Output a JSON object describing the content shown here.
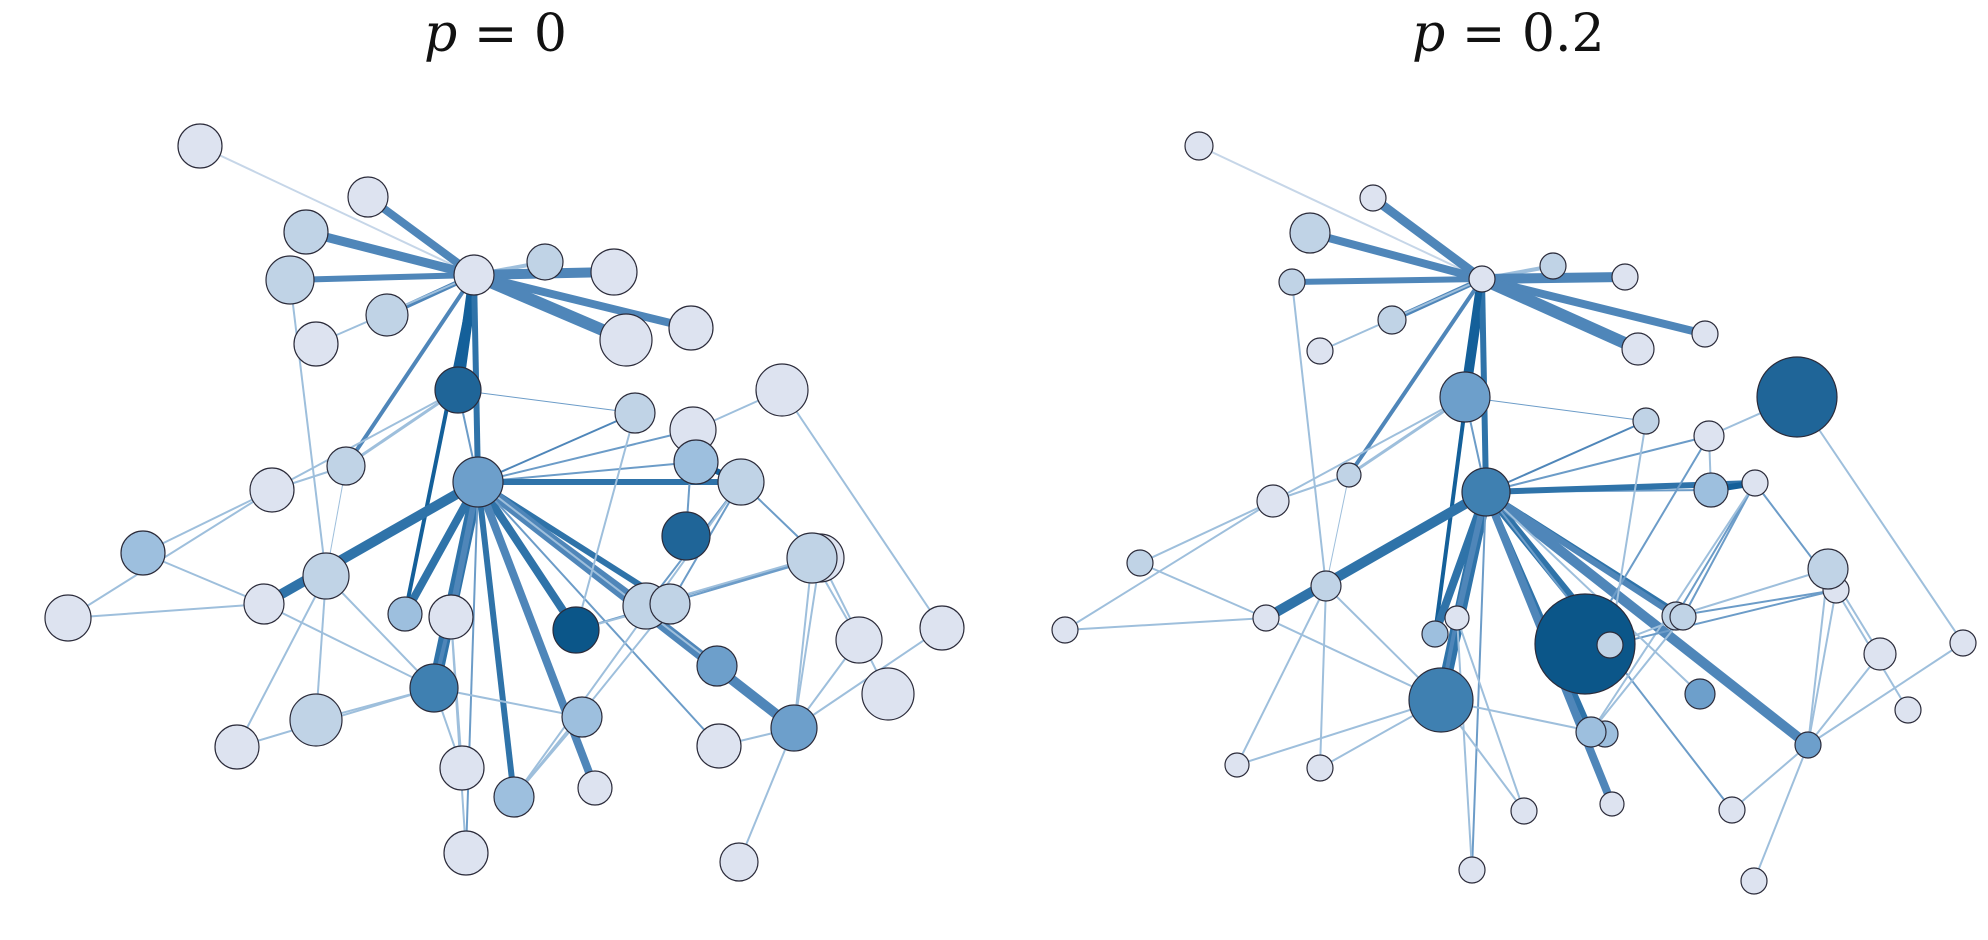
{
  "panels": [
    {
      "id": "left",
      "title_var": "p",
      "title_eq": " = 0",
      "node_color_scale": [
        "#dde3f0",
        "#c0d3e6",
        "#9dbfde",
        "#6d9fcb",
        "#3f80b1",
        "#1f6598",
        "#0b5689"
      ],
      "nodes": [
        {
          "r": 22,
          "c": 0
        },
        {
          "r": 22,
          "c": 1
        },
        {
          "r": 20,
          "c": 0
        },
        {
          "r": 24,
          "c": 1
        },
        {
          "r": 21,
          "c": 1
        },
        {
          "r": 22,
          "c": 0
        },
        {
          "r": 20,
          "c": 0
        },
        {
          "r": 18,
          "c": 1
        },
        {
          "r": 23,
          "c": 0
        },
        {
          "r": 26,
          "c": 0
        },
        {
          "r": 22,
          "c": 0
        },
        {
          "r": 26,
          "c": 0
        },
        {
          "r": 23,
          "c": 5
        },
        {
          "r": 19,
          "c": 1
        },
        {
          "r": 20,
          "c": 1
        },
        {
          "r": 23,
          "c": 0
        },
        {
          "r": 23,
          "c": 1
        },
        {
          "r": 25,
          "c": 3
        },
        {
          "r": 22,
          "c": 2
        },
        {
          "r": 22,
          "c": 0
        },
        {
          "r": 23,
          "c": 1
        },
        {
          "r": 24,
          "c": 0
        },
        {
          "r": 24,
          "c": 5
        },
        {
          "r": 22,
          "c": 2
        },
        {
          "r": 23,
          "c": 1
        },
        {
          "r": 23,
          "c": 0
        },
        {
          "r": 25,
          "c": 1
        },
        {
          "r": 20,
          "c": 0
        },
        {
          "r": 24,
          "c": 4
        },
        {
          "r": 23,
          "c": 6
        },
        {
          "r": 20,
          "c": 3
        },
        {
          "r": 23,
          "c": 0
        },
        {
          "r": 22,
          "c": 0
        },
        {
          "r": 26,
          "c": 0
        },
        {
          "r": 26,
          "c": 1
        },
        {
          "r": 17,
          "c": 2
        },
        {
          "r": 20,
          "c": 1
        },
        {
          "r": 22,
          "c": 0
        },
        {
          "r": 22,
          "c": 0
        },
        {
          "r": 20,
          "c": 2
        },
        {
          "r": 22,
          "c": 0
        },
        {
          "r": 17,
          "c": 0
        },
        {
          "r": 23,
          "c": 3
        },
        {
          "r": 20,
          "c": 2
        },
        {
          "r": 22,
          "c": 0
        },
        {
          "r": 22,
          "c": 0
        },
        {
          "r": 19,
          "c": 0
        }
      ]
    },
    {
      "id": "right",
      "title_var": "p",
      "title_eq": " = 0.2",
      "node_color_scale": [
        "#dde3f0",
        "#c0d3e6",
        "#9dbfde",
        "#6d9fcb",
        "#3f80b1",
        "#1f6598",
        "#0b5689"
      ],
      "nodes": [
        {
          "r": 14,
          "c": 0
        },
        {
          "r": 13,
          "c": 0
        },
        {
          "r": 20,
          "c": 1
        },
        {
          "r": 13,
          "c": 1
        },
        {
          "r": 14,
          "c": 1
        },
        {
          "r": 13,
          "c": 0
        },
        {
          "r": 13,
          "c": 0
        },
        {
          "r": 13,
          "c": 1
        },
        {
          "r": 13,
          "c": 0
        },
        {
          "r": 16,
          "c": 0
        },
        {
          "r": 13,
          "c": 0
        },
        {
          "r": 40,
          "c": 5
        },
        {
          "r": 25,
          "c": 3
        },
        {
          "r": 12,
          "c": 1
        },
        {
          "r": 13,
          "c": 1
        },
        {
          "r": 15,
          "c": 0
        },
        {
          "r": 13,
          "c": 0
        },
        {
          "r": 24,
          "c": 4
        },
        {
          "r": 13,
          "c": 1
        },
        {
          "r": 16,
          "c": 0
        },
        {
          "r": 15,
          "c": 1
        },
        {
          "r": 13,
          "c": 0
        },
        {
          "r": 50,
          "c": 6
        },
        {
          "r": 17,
          "c": 2
        },
        {
          "r": 14,
          "c": 1
        },
        {
          "r": 16,
          "c": 0
        },
        {
          "r": 20,
          "c": 1
        },
        {
          "r": 13,
          "c": 0
        },
        {
          "r": 32,
          "c": 4
        },
        {
          "r": 13,
          "c": 1
        },
        {
          "r": 15,
          "c": 3
        },
        {
          "r": 13,
          "c": 0
        },
        {
          "r": 13,
          "c": 0
        },
        {
          "r": 13,
          "c": 0
        },
        {
          "r": 13,
          "c": 0
        },
        {
          "r": 13,
          "c": 2
        },
        {
          "r": 13,
          "c": 1
        },
        {
          "r": 12,
          "c": 0
        },
        {
          "r": 12,
          "c": 0
        },
        {
          "r": 13,
          "c": 2
        },
        {
          "r": 13,
          "c": 0
        },
        {
          "r": 12,
          "c": 0
        },
        {
          "r": 13,
          "c": 3
        },
        {
          "r": 15,
          "c": 2
        },
        {
          "r": 13,
          "c": 0
        },
        {
          "r": 13,
          "c": 0
        },
        {
          "r": 13,
          "c": 0
        }
      ]
    }
  ]
}
